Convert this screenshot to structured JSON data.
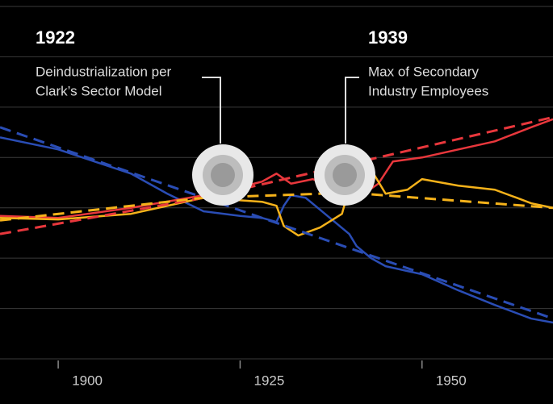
{
  "chart_data": {
    "type": "line",
    "xlim": [
      1892,
      1968
    ],
    "xticks": [
      1900,
      1925,
      1950
    ],
    "ylim": [
      0,
      7
    ],
    "yticks": [
      0,
      1,
      2,
      3,
      4,
      5,
      6,
      7
    ],
    "grid": true,
    "series": [
      {
        "color": "#2a4db5",
        "dash": false,
        "x": [
          1892,
          1900,
          1910,
          1915,
          1920,
          1925,
          1928,
          1930,
          1931,
          1932,
          1934,
          1936,
          1938,
          1940,
          1941,
          1943,
          1945,
          1950,
          1955,
          1960,
          1965,
          1968
        ],
        "values": [
          4.4,
          4.16,
          3.68,
          3.28,
          2.93,
          2.84,
          2.8,
          2.72,
          3.04,
          3.25,
          3.2,
          2.96,
          2.72,
          2.48,
          2.24,
          2.0,
          1.84,
          1.68,
          1.36,
          1.07,
          0.8,
          0.72
        ]
      },
      {
        "color": "#e8373c",
        "dash": false,
        "x": [
          1892,
          1900,
          1910,
          1920,
          1925,
          1928,
          1930,
          1932,
          1935,
          1937,
          1940,
          1942,
          1944,
          1946,
          1950,
          1955,
          1960,
          1965,
          1968
        ],
        "values": [
          2.84,
          2.8,
          3.0,
          3.25,
          3.41,
          3.52,
          3.68,
          3.48,
          3.57,
          3.44,
          3.2,
          3.28,
          3.48,
          3.92,
          4.0,
          4.16,
          4.32,
          4.6,
          4.76
        ]
      },
      {
        "color": "#f5b21a",
        "dash": false,
        "x": [
          1892,
          1900,
          1910,
          1915,
          1920,
          1925,
          1928,
          1930,
          1931,
          1933,
          1936,
          1939,
          1941,
          1943,
          1945,
          1948,
          1950,
          1955,
          1960,
          1963,
          1965,
          1968
        ],
        "values": [
          2.8,
          2.77,
          2.88,
          3.04,
          3.2,
          3.15,
          3.12,
          3.04,
          2.64,
          2.45,
          2.61,
          2.88,
          3.92,
          3.76,
          3.28,
          3.36,
          3.57,
          3.44,
          3.36,
          3.2,
          3.09,
          3.0
        ]
      },
      {
        "color": "#2a4db5",
        "dash": true,
        "x": [
          1892,
          1968
        ],
        "values": [
          4.6,
          0.8
        ]
      },
      {
        "color": "#e8373c",
        "dash": true,
        "x": [
          1892,
          1920,
          1968
        ],
        "values": [
          2.48,
          3.2,
          4.8
        ]
      },
      {
        "color": "#f5b21a",
        "dash": true,
        "x": [
          1892,
          1920,
          1940,
          1968
        ],
        "values": [
          2.75,
          3.2,
          3.3,
          3.0
        ]
      }
    ],
    "annotations": [
      {
        "title": "1922",
        "lines": [
          "Deindustrialization per",
          "Clark’s Sector Model"
        ]
      },
      {
        "title": "1939",
        "lines": [
          "Max of Secondary",
          "Industry Employees"
        ]
      }
    ]
  }
}
